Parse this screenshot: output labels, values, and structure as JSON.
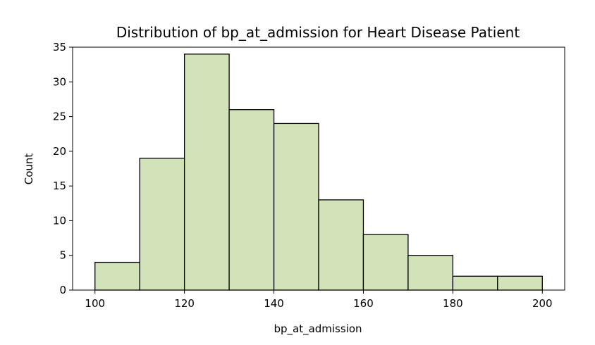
{
  "chart_data": {
    "type": "bar",
    "title": "Distribution of bp_at_admission for Heart Disease Patient",
    "xlabel": "bp_at_admission",
    "ylabel": "Count",
    "bins": [
      {
        "start": 100,
        "end": 110,
        "count": 4
      },
      {
        "start": 110,
        "end": 120,
        "count": 19
      },
      {
        "start": 120,
        "end": 130,
        "count": 34
      },
      {
        "start": 130,
        "end": 140,
        "count": 26
      },
      {
        "start": 140,
        "end": 150,
        "count": 24
      },
      {
        "start": 150,
        "end": 160,
        "count": 13
      },
      {
        "start": 160,
        "end": 170,
        "count": 8
      },
      {
        "start": 170,
        "end": 180,
        "count": 5
      },
      {
        "start": 180,
        "end": 190,
        "count": 2
      },
      {
        "start": 190,
        "end": 200,
        "count": 2
      }
    ],
    "xlim": [
      95,
      205
    ],
    "ylim": [
      0,
      35
    ],
    "xticks": [
      100,
      120,
      140,
      160,
      180,
      200
    ],
    "yticks": [
      0,
      5,
      10,
      15,
      20,
      25,
      30,
      35
    ],
    "grid": false,
    "bar_color": "#d3e3b9",
    "edge_color": "#000000"
  }
}
